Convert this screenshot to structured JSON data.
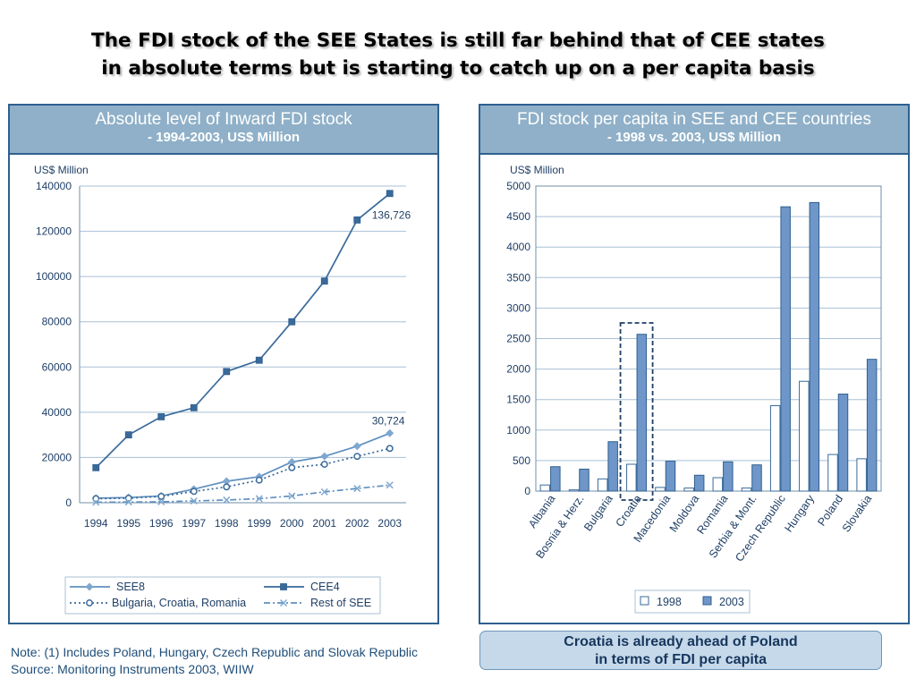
{
  "slide": {
    "title_line1": "The FDI stock of the SEE States is still far behind that of CEE states",
    "title_line2": "in absolute terms but is starting to catch up on a per capita basis",
    "note": "Note:  (1) Includes Poland, Hungary, Czech Republic and Slovak Republic",
    "source": "Source: Monitoring Instruments 2003, WIIW",
    "callout_line1": "Croatia is already ahead of Poland",
    "callout_line2": "in terms of FDI per capita",
    "colors": {
      "panel_header": "#8fb0c8",
      "border": "#2f5f8f",
      "series": "#3a6a9a",
      "callout_bg": "#c5d9ea"
    }
  },
  "chart_data": [
    {
      "type": "line",
      "title": "Absolute level of Inward FDI stock",
      "subtitle": "- 1994-2003, US$ Million",
      "ylabel": "US$ Million",
      "x": [
        "1994",
        "1995",
        "1996",
        "1997",
        "1998",
        "1999",
        "2000",
        "2001",
        "2002",
        "2003"
      ],
      "ylim": [
        0,
        140000
      ],
      "yticks": [
        0,
        20000,
        40000,
        60000,
        80000,
        100000,
        120000,
        140000
      ],
      "grid": true,
      "legend_position": "bottom",
      "series": [
        {
          "name": "SEE8",
          "values": [
            2000,
            2300,
            3000,
            6000,
            9500,
            11500,
            18000,
            20500,
            25000,
            30724
          ],
          "marker": "diamond",
          "dash": "solid",
          "color": "#7fa8d0"
        },
        {
          "name": "CEE4",
          "values": [
            15500,
            30000,
            38000,
            42000,
            58000,
            63000,
            80000,
            98000,
            125000,
            136726
          ],
          "marker": "square",
          "dash": "solid",
          "color": "#3a6a9a"
        },
        {
          "name": "Bulgaria, Croatia, Romania",
          "values": [
            1800,
            2000,
            2800,
            5000,
            7000,
            10000,
            15500,
            17000,
            20500,
            24000
          ],
          "marker": "circle",
          "dash": "dotted",
          "color": "#3a6a9a"
        },
        {
          "name": "Rest of SEE",
          "values": [
            200,
            300,
            400,
            800,
            1200,
            1800,
            3000,
            4800,
            6300,
            7800
          ],
          "marker": "x",
          "dash": "dashdot",
          "color": "#7fa8d0"
        }
      ],
      "annotations": [
        {
          "text": "136,726",
          "series": "CEE4",
          "point": "2003"
        },
        {
          "text": "30,724",
          "series": "SEE8",
          "point": "2003"
        }
      ]
    },
    {
      "type": "bar",
      "title": "FDI stock per capita in SEE and CEE countries",
      "subtitle": "- 1998 vs. 2003, US$ Million",
      "ylabel": "US$ Million",
      "categories": [
        "Albania",
        "Bosnia & Herz.",
        "Bulgaria",
        "Croatia",
        "Macedonia",
        "Moldova",
        "Romania",
        "Serbia & Mont.",
        "Czech Republic",
        "Hungary",
        "Poland",
        "Slovakia"
      ],
      "ylim": [
        0,
        5000
      ],
      "yticks": [
        0,
        500,
        1000,
        1500,
        2000,
        2500,
        3000,
        3500,
        4000,
        4500,
        5000
      ],
      "grid": true,
      "legend_position": "bottom",
      "series": [
        {
          "name": "1998",
          "values": [
            100,
            20,
            200,
            440,
            60,
            50,
            220,
            50,
            1400,
            1800,
            600,
            530
          ],
          "fill": "#ffffff",
          "stroke": "#3a6a9a"
        },
        {
          "name": "2003",
          "values": [
            400,
            360,
            810,
            2570,
            490,
            260,
            480,
            430,
            4660,
            4730,
            1590,
            2160
          ],
          "fill": "#6f96c8",
          "stroke": "#2f5f8f"
        }
      ],
      "highlight_category": "Croatia"
    }
  ]
}
